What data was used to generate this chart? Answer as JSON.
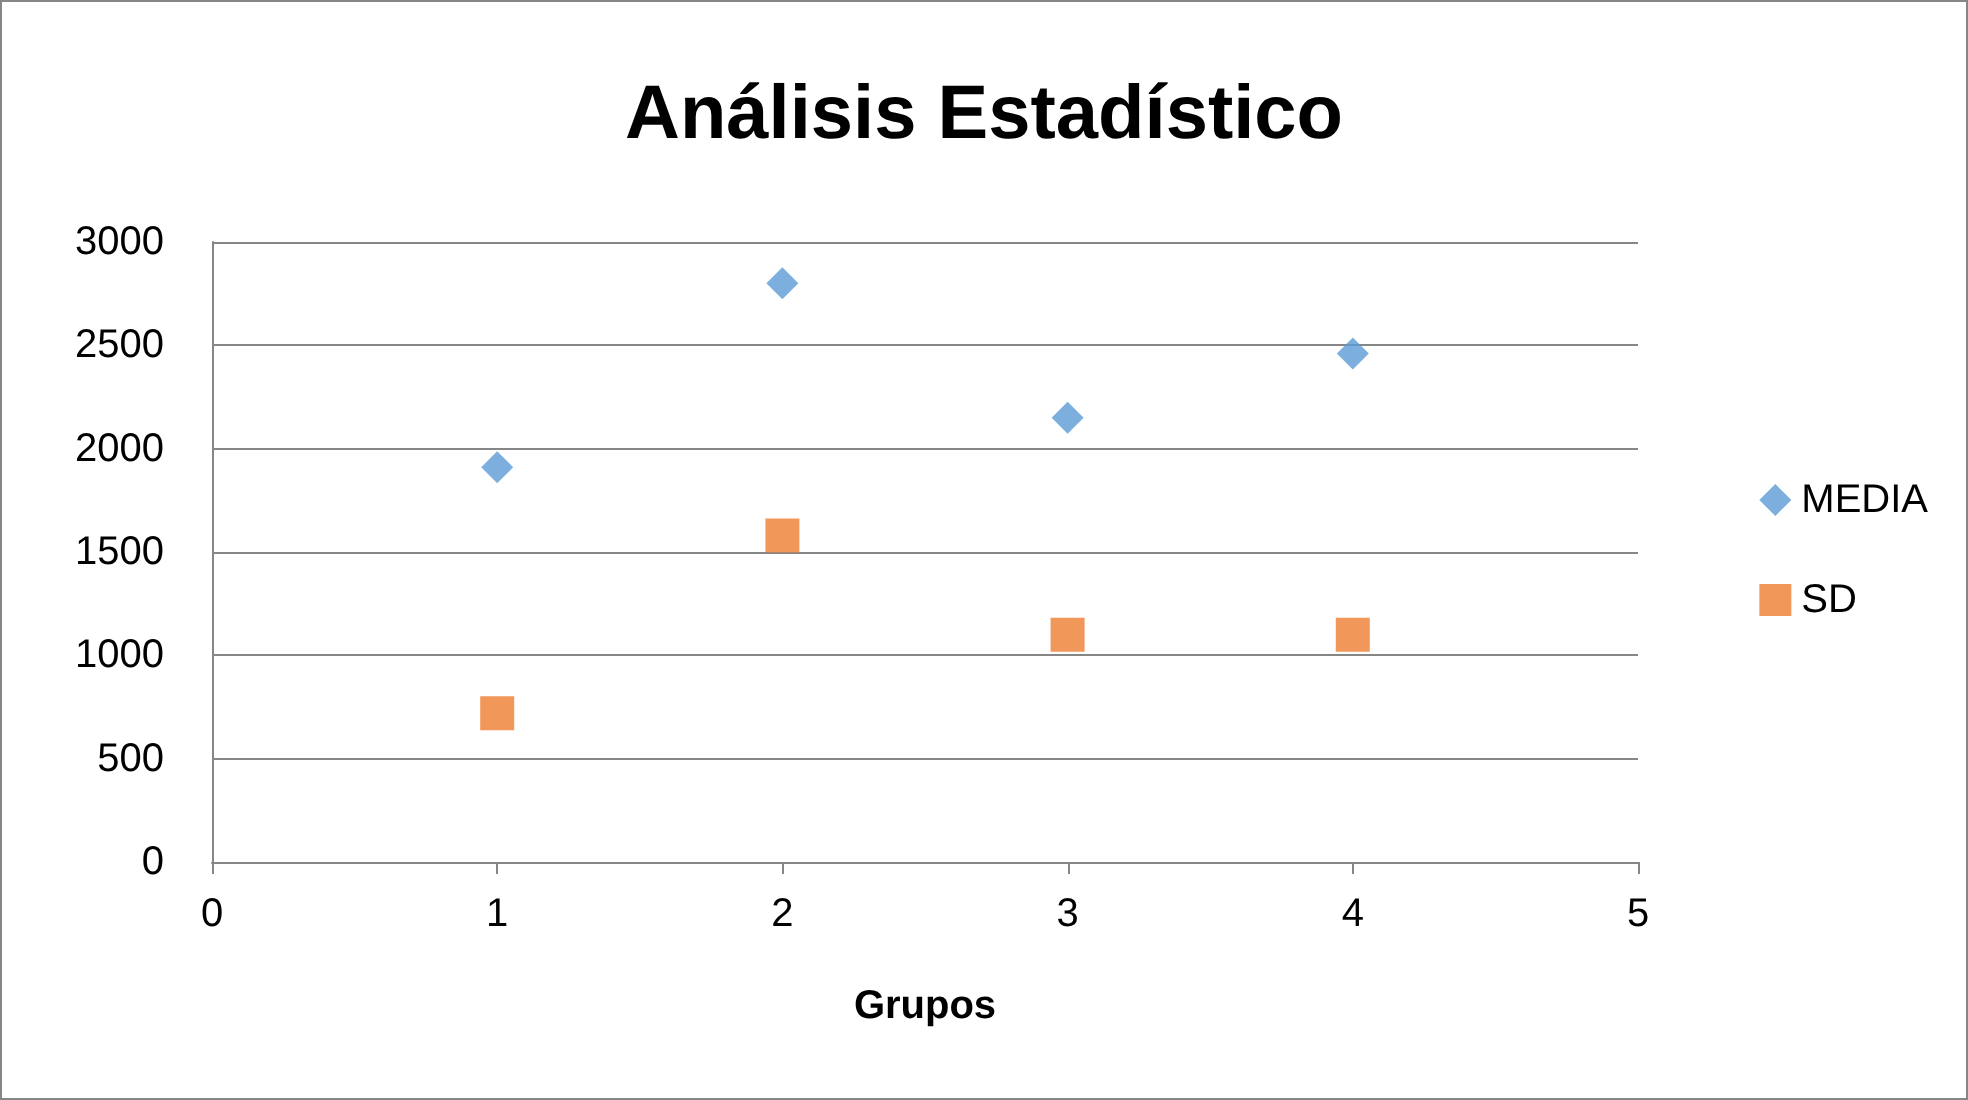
{
  "chart_data": {
    "type": "scatter",
    "title": "Análisis Estadístico",
    "xlabel": "Grupos",
    "x": [
      1,
      2,
      3,
      4
    ],
    "series": [
      {
        "name": "MEDIA",
        "color": "#5b9bd5",
        "marker": "diamond",
        "values": [
          1910,
          2800,
          2150,
          2460
        ]
      },
      {
        "name": "SD",
        "color": "#ed7d31",
        "marker": "square",
        "values": [
          720,
          1580,
          1100,
          1100
        ]
      }
    ],
    "xlim": [
      0,
      5
    ],
    "xticks": [
      0,
      1,
      2,
      3,
      4,
      5
    ],
    "ylim": [
      0,
      3000
    ],
    "yticks": [
      0,
      500,
      1000,
      1500,
      2000,
      2500,
      3000
    ],
    "grid": "y",
    "legend": "right"
  }
}
